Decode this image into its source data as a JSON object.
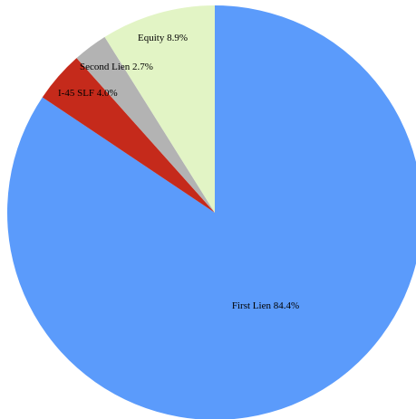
{
  "chart_data": {
    "type": "pie",
    "title": "",
    "start_angle": "12 o'clock",
    "direction": "clockwise",
    "legend": "none",
    "slices": [
      {
        "label": "First Lien 84.4%",
        "category": "First Lien",
        "value": 84.4,
        "color": "#5b9bfb"
      },
      {
        "label": "I-45 SLF 4.0%",
        "category": "I-45 SLF",
        "value": 4.0,
        "color": "#c52a1b"
      },
      {
        "label": "Second Lien 2.7%",
        "category": "Second Lien",
        "value": 2.7,
        "color": "#b3b3b3"
      },
      {
        "label": "Equity 8.9%",
        "category": "Equity",
        "value": 8.9,
        "color": "#e2f4c5"
      }
    ]
  }
}
